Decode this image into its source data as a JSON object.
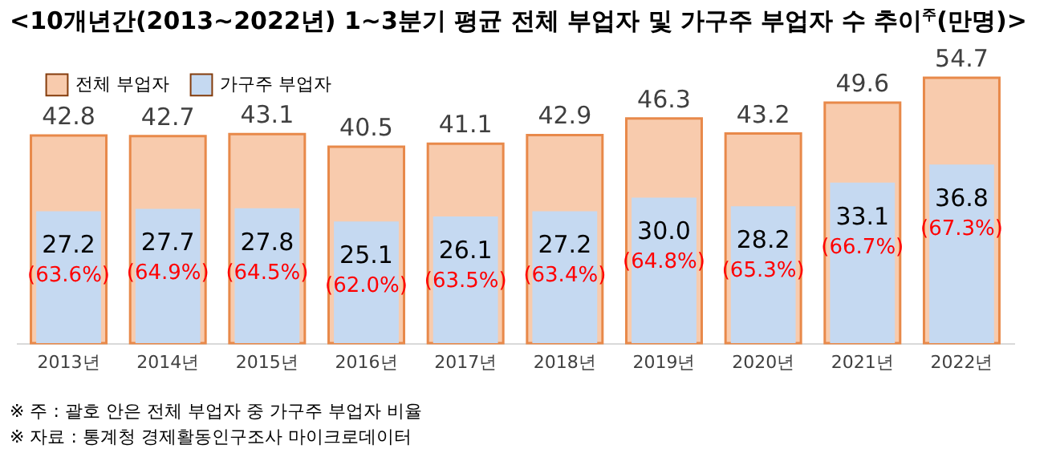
{
  "chart_data": {
    "type": "bar",
    "title": "<10개년간(2013~2022년) 1~3분기 평균 전체 부업자 및 가구주 부업자 수 추이$^{주}$(만명)>",
    "categories": [
      "2013년",
      "2014년",
      "2015년",
      "2016년",
      "2017년",
      "2018년",
      "2019년",
      "2020년",
      "2021년",
      "2022년"
    ],
    "series": [
      {
        "name": "전체 부업자",
        "color": "#f8cbad",
        "values": [
          42.8,
          42.7,
          43.1,
          40.5,
          41.1,
          42.9,
          46.3,
          43.2,
          49.6,
          54.7
        ],
        "value_labels": [
          "42.8",
          "42.7",
          "43.1",
          "40.5",
          "41.1",
          "42.9",
          "46.3",
          "43.2",
          "49.6",
          "54.7"
        ]
      },
      {
        "name": "가구주 부업자",
        "color": "#c5d9f1",
        "values": [
          27.2,
          27.7,
          27.8,
          25.1,
          26.1,
          27.2,
          30.0,
          28.2,
          33.1,
          36.8
        ],
        "value_labels": [
          "27.2",
          "27.7",
          "27.8",
          "25.1",
          "26.1",
          "27.2",
          "30.0",
          "28.2",
          "33.1",
          "36.8"
        ]
      }
    ],
    "legend": "top left",
    "annotations": [
      "(63.6%)",
      "(64.9%)",
      "(64.5%)",
      "(62.0%)",
      "(63.5%)",
      "(63.4%)",
      "(64.8%)",
      "(65.3%)",
      "(66.7%)",
      "(67.3%)",
      "※ 주 : 괄호 안은 전체 부업자 중 가구주 부업자 비율",
      "※ 자료 : 통계청 경제활동인구조사 마이크로데이터"
    ]
  }
}
